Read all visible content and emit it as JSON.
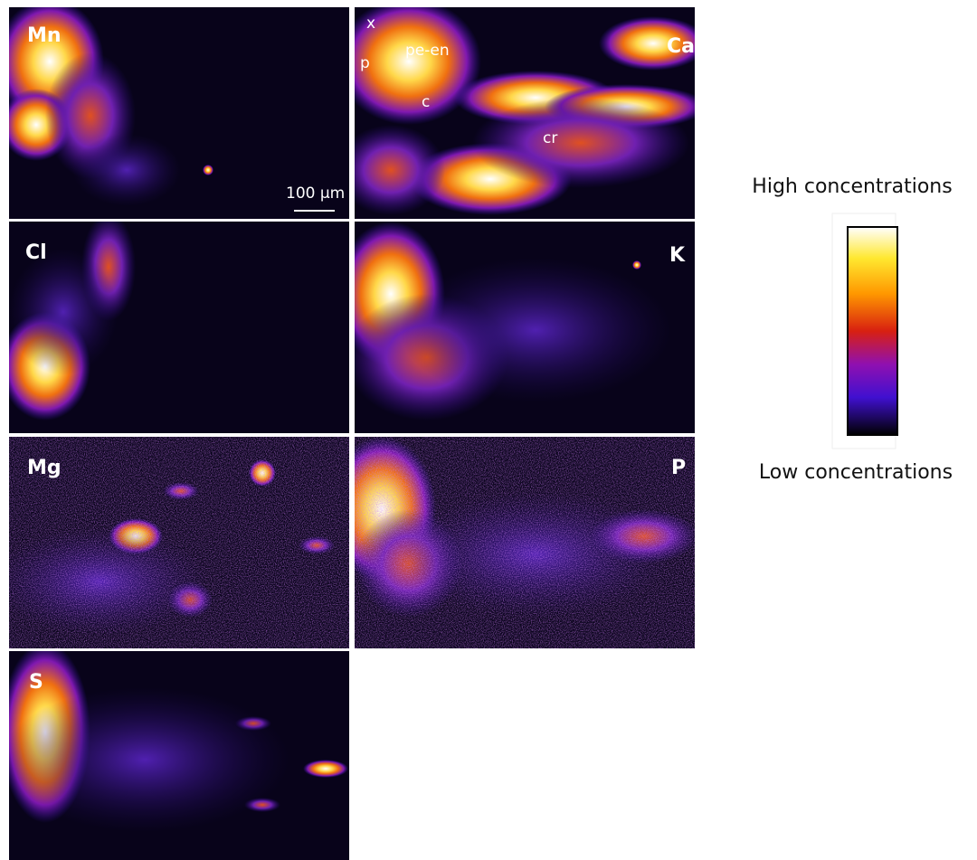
{
  "panels": [
    {
      "label": "Mn",
      "scale_bar": "100 µm"
    },
    {
      "label": "Ca",
      "annotations": [
        "x",
        "p",
        "pe-en",
        "c",
        "cr"
      ]
    },
    {
      "label": "Cl"
    },
    {
      "label": "K"
    },
    {
      "label": "Mg"
    },
    {
      "label": "P"
    },
    {
      "label": "S"
    }
  ],
  "legend": {
    "high": "High concentrations",
    "low": "Low concentrations"
  }
}
